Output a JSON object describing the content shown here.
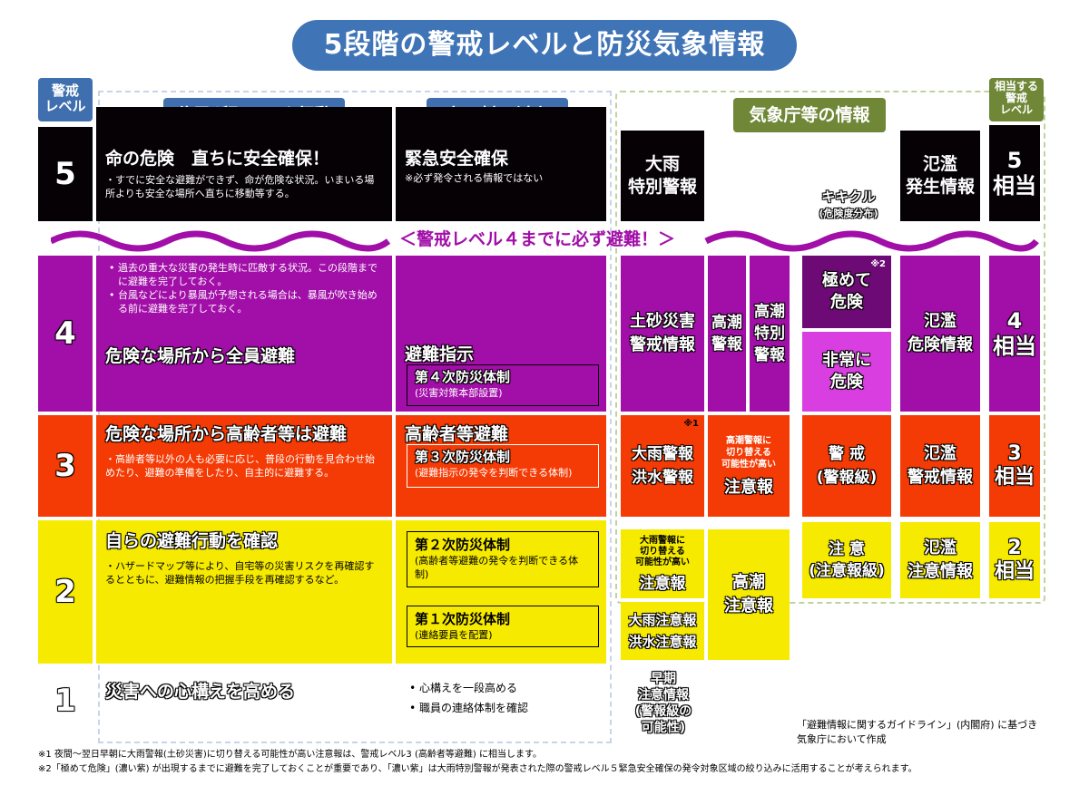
{
  "title": "5段階の警戒レベルと防災気象情報",
  "headers": {
    "level_label": "警戒\nレベル",
    "resident_action": "住民が取るべき行動",
    "municipality": "市町村の対応",
    "jma_info": "気象庁等の情報",
    "equivalent_level": "相当する\n警戒\nレベル"
  },
  "banner": "＜警戒レベル４までに必ず避難！＞",
  "kikikuru": {
    "name": "キキクル",
    "sub": "(危険度分布)"
  },
  "levels": {
    "5": {
      "num": "5",
      "action_title": "命の危険　直ちに安全確保！",
      "action_note": "・すでに安全な避難ができず、命が危険な状況。いまいる場所よりも安全な場所へ直ちに移動等する。",
      "muni_title": "緊急安全確保",
      "muni_note": "※必ず発令される情報ではない",
      "heavy_rain": "大雨\n特別警報",
      "flood": "氾濫\n発生情報",
      "equiv": "5\n相当"
    },
    "4": {
      "num": "4",
      "bullet1": "過去の重大な災害の発生時に匹敵する状況。この段階までに避難を完了しておく。",
      "bullet2": "台風などにより暴風が予想される場合は、暴風が吹き始める前に避難を完了しておく。",
      "action_title": "危険な場所から全員避難",
      "muni_title": "避難指示",
      "muni_box_title": "第４次防災体制",
      "muni_box_note": "(災害対策本部設置)",
      "landslide": "土砂災害\n警戒情報",
      "storm_surge_warning": "高潮\n警報",
      "storm_surge_special": "高潮\n特別\n警報",
      "extreme_mark": "※2",
      "extreme": "極めて\n危険",
      "very_danger": "非常に\n危険",
      "flood": "氾濫\n危険情報",
      "equiv": "4\n相当"
    },
    "3": {
      "num": "3",
      "action_title": "危険な場所から高齢者等は避難",
      "action_note": "・高齢者等以外の人も必要に応じ、普段の行動を見合わせ始めたり、避難の準備をしたり、自主的に避難する。",
      "muni_title": "高齢者等避難",
      "muni_box_title": "第３次防災体制",
      "muni_box_note": "(避難指示の発令を判断できる体制)",
      "rain_mark": "※1",
      "rain": "大雨警報\n洪水警報",
      "surge_small": "高潮警報に\n切り替える\n可能性が高い",
      "surge_big": "注意報",
      "kiki": "警 戒\n(警報級)",
      "flood": "氾濫\n警戒情報",
      "equiv": "3\n相当"
    },
    "2": {
      "num": "2",
      "action_title": "自らの避難行動を確認",
      "action_note": "・ハザードマップ等により、自宅等の災害リスクを再確認するとともに、避難情報の把握手段を再確認するなど。",
      "muni_box2_title": "第２次防災体制",
      "muni_box2_note": "(高齢者等避難の発令を判断できる体制)",
      "muni_box1_title": "第１次防災体制",
      "muni_box1_note": "(連絡要員を配置)",
      "rain_small": "大雨警報に\n切り替える\n可能性が高い",
      "rain_big": "注意報",
      "advisory": "大雨注意報\n洪水注意報",
      "surge": "高潮\n注意報",
      "kiki": "注 意\n(注意報級)",
      "flood": "氾濫\n注意情報",
      "equiv": "2\n相当"
    },
    "1": {
      "num": "1",
      "action_title": "災害への心構えを高める",
      "muni_items": [
        "心構えを一段高める",
        "職員の連絡体制を確認"
      ],
      "early": "早期\n注意情報\n(警報級の\n可能性)"
    }
  },
  "source_note": "「避難情報に関するガイドライン」(内閣府) に基づき\n気象庁において作成",
  "footnotes": [
    "※1 夜間～翌日早朝に大雨警報(土砂災害)に切り替える可能性が高い注意報は、警戒レベル3 (高齢者等避難) に相当します。",
    "※2「極めて危険」(濃い紫) が出現するまでに避難を完了しておくことが重要であり、「濃い紫」は大雨特別警報が発表された際の警戒レベル５緊急安全確保の発令対象区域の絞り込みに活用することが考えられます。"
  ],
  "colors": {
    "title_bg": "#3f74b6",
    "level5": "#050105",
    "level4": "#a10fa8",
    "level3": "#f53b05",
    "level2": "#f6ea00",
    "extreme": "#6d0a75",
    "very_danger": "#d93ee0",
    "jma_label": "#6f8736"
  }
}
